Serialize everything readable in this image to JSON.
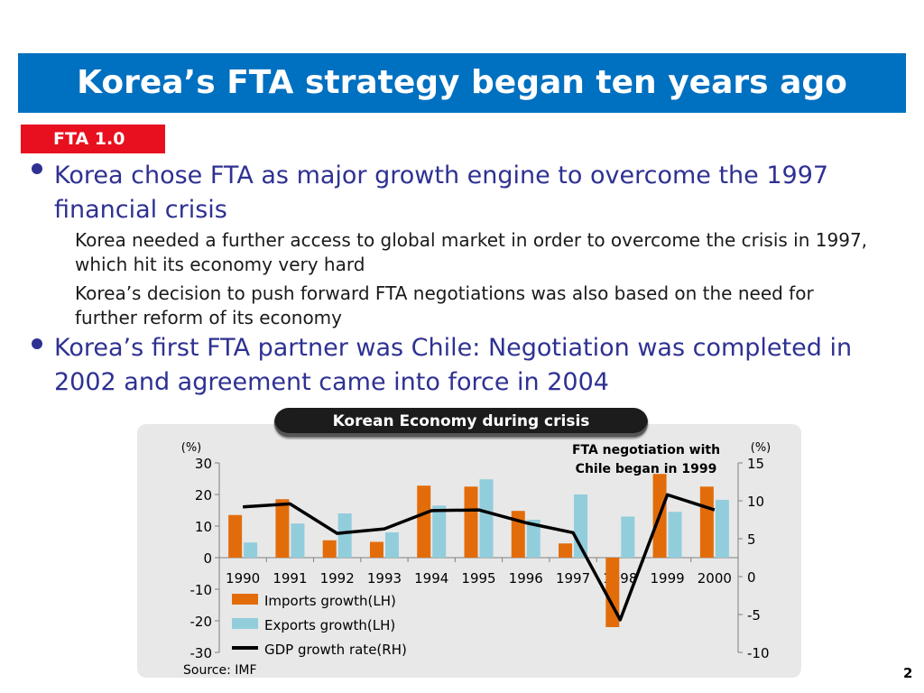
{
  "slide": {
    "title": "Korea’s FTA strategy began ten years ago",
    "tag": "FTA 1.0",
    "bullets": [
      "Korea chose FTA as major growth engine to overcome the 1997 financial crisis",
      "Korea’s first FTA partner was Chile: Negotiation was completed in 2002 and agreement came into force in 2004"
    ],
    "sub_bullets": [
      "Korea needed a further access to global market in order to overcome the crisis in 1997, which hit its economy very hard",
      "Korea’s decision to push forward FTA negotiations was also based on the need for further reform of its economy"
    ],
    "chart_title": "Korean Economy during crisis",
    "source": "Source: IMF",
    "page_number": "2"
  },
  "colors": {
    "title_bar": "#0070c0",
    "tag": "#e8101e",
    "bullet_text": "#2e3192",
    "imports": "#e36c0a",
    "exports": "#92cddc",
    "gdp": "#000000"
  },
  "chart_data": {
    "type": "bar",
    "categories": [
      "1990",
      "1991",
      "1992",
      "1993",
      "1994",
      "1995",
      "1996",
      "1997",
      "1998",
      "1999",
      "2000"
    ],
    "series": [
      {
        "name": "Imports growth(LH)",
        "type": "bar",
        "axis": "left",
        "values": [
          13.5,
          18.5,
          5.5,
          5.0,
          22.8,
          22.5,
          14.8,
          4.5,
          -22.0,
          26.5,
          22.5
        ]
      },
      {
        "name": "Exports growth(LH)",
        "type": "bar",
        "axis": "left",
        "values": [
          4.8,
          10.8,
          14.0,
          8.0,
          16.5,
          24.8,
          12.0,
          20.0,
          13.0,
          14.5,
          18.3
        ]
      },
      {
        "name": "GDP growth rate(RH)",
        "type": "line",
        "axis": "right",
        "values": [
          9.2,
          9.6,
          5.7,
          6.3,
          8.7,
          8.8,
          7.1,
          5.8,
          -5.7,
          10.8,
          8.8
        ]
      }
    ],
    "left_axis": {
      "label": "(%)",
      "ticks": [
        30,
        20,
        10,
        0,
        -10,
        -20,
        -30
      ],
      "ylim": [
        -30,
        30
      ]
    },
    "right_axis": {
      "label": "(%)",
      "ticks": [
        15,
        10,
        5,
        0,
        -5,
        -10
      ],
      "ylim": [
        -10,
        15
      ]
    },
    "annotation": [
      "FTA negotiation with",
      "Chile began in 1999"
    ],
    "legend_position": "bottom-left"
  }
}
